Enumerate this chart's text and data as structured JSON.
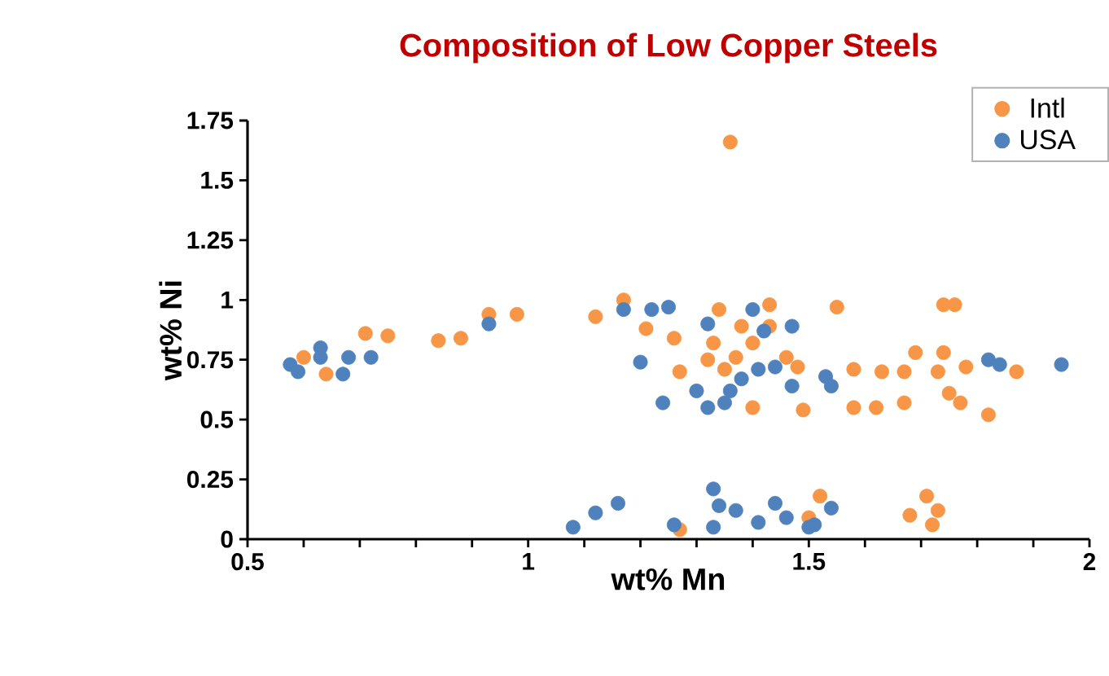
{
  "chart_data": {
    "type": "scatter",
    "title": "Composition of Low Copper Steels",
    "xlabel": "wt% Mn",
    "ylabel": "wt% Ni",
    "xlim": [
      0.5,
      2
    ],
    "xticks": [
      0.5,
      1,
      1.5,
      2
    ],
    "ylim": [
      0,
      1.75
    ],
    "yticks": [
      0,
      0.25,
      0.5,
      0.75,
      1,
      1.25,
      1.5,
      1.75
    ],
    "legend": "top right",
    "marker": "circle",
    "series": [
      {
        "name": "Intl",
        "color": "#f79646",
        "x": [
          0.6,
          0.64,
          0.71,
          0.75,
          0.84,
          0.88,
          0.93,
          0.98,
          1.12,
          1.17,
          1.21,
          1.26,
          1.27,
          1.34,
          1.33,
          1.32,
          1.35,
          1.37,
          1.38,
          1.4,
          1.43,
          1.43,
          1.46,
          1.48,
          1.4,
          1.49,
          1.27,
          1.5,
          1.55,
          1.74,
          1.76,
          1.58,
          1.58,
          1.63,
          1.67,
          1.62,
          1.67,
          1.69,
          1.74,
          1.73,
          1.78,
          1.75,
          1.77,
          1.82,
          1.87,
          1.52,
          1.68,
          1.71,
          1.73,
          1.72,
          1.36
        ],
        "values": [
          0.76,
          0.69,
          0.86,
          0.85,
          0.83,
          0.84,
          0.94,
          0.94,
          0.93,
          1.0,
          0.88,
          0.84,
          0.7,
          0.96,
          0.82,
          0.75,
          0.71,
          0.76,
          0.89,
          0.82,
          0.98,
          0.89,
          0.76,
          0.72,
          0.55,
          0.54,
          0.04,
          0.09,
          0.97,
          0.98,
          0.98,
          0.71,
          0.55,
          0.7,
          0.7,
          0.55,
          0.57,
          0.78,
          0.78,
          0.7,
          0.72,
          0.61,
          0.57,
          0.52,
          0.7,
          0.18,
          0.1,
          0.18,
          0.12,
          0.06,
          1.66
        ]
      },
      {
        "name": "USA",
        "color": "#4f81bd",
        "x": [
          0.576,
          0.59,
          0.63,
          0.63,
          0.68,
          0.67,
          0.72,
          0.93,
          1.17,
          1.22,
          1.25,
          1.2,
          1.24,
          1.32,
          1.4,
          1.42,
          1.47,
          1.3,
          1.32,
          1.36,
          1.38,
          1.41,
          1.44,
          1.47,
          1.35,
          1.08,
          1.12,
          1.16,
          1.26,
          1.33,
          1.34,
          1.33,
          1.37,
          1.41,
          1.44,
          1.46,
          1.5,
          1.53,
          1.54,
          1.82,
          1.84,
          1.95,
          1.54,
          1.51
        ],
        "values": [
          0.73,
          0.7,
          0.8,
          0.76,
          0.76,
          0.69,
          0.76,
          0.9,
          0.96,
          0.96,
          0.97,
          0.74,
          0.57,
          0.9,
          0.96,
          0.87,
          0.89,
          0.62,
          0.55,
          0.62,
          0.67,
          0.71,
          0.72,
          0.64,
          0.57,
          0.05,
          0.11,
          0.15,
          0.06,
          0.21,
          0.14,
          0.05,
          0.12,
          0.07,
          0.15,
          0.09,
          0.05,
          0.68,
          0.64,
          0.75,
          0.73,
          0.73,
          0.13,
          0.06
        ]
      }
    ]
  }
}
